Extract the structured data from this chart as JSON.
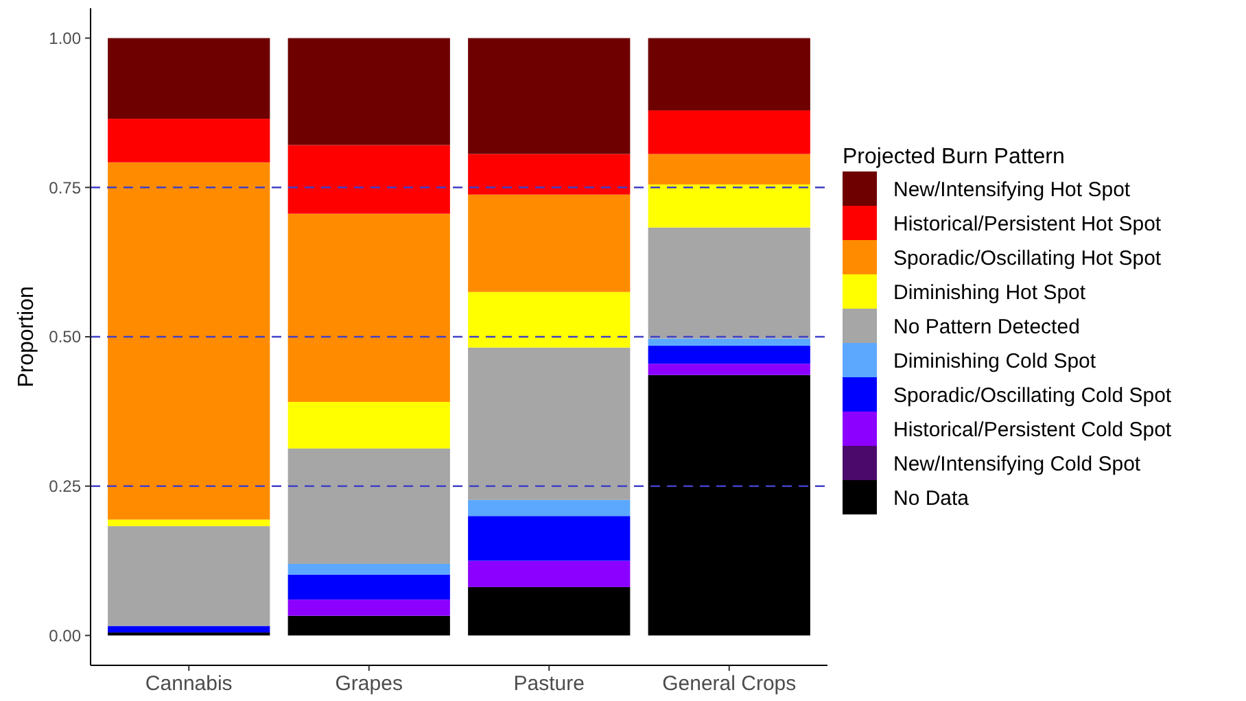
{
  "chart_data": {
    "type": "bar",
    "stacked": true,
    "ylabel": "Proportion",
    "legend_title": "Projected Burn Pattern",
    "legend": "right",
    "grid": false,
    "categories": [
      "Cannabis",
      "Grapes",
      "Pasture",
      "General Crops"
    ],
    "ylim": [
      -0.05,
      1.05
    ],
    "yticks": [
      {
        "value": 0,
        "label": "0.00"
      },
      {
        "value": 0.25,
        "label": "0.25"
      },
      {
        "value": 0.5,
        "label": "0.50"
      },
      {
        "value": 0.75,
        "label": "0.75"
      },
      {
        "value": 1,
        "label": "1.00"
      }
    ],
    "series": [
      {
        "name": "No Data",
        "color": "#000000",
        "values": [
          0.005,
          0.033,
          0.081,
          0.436
        ]
      },
      {
        "name": "New/Intensifying Cold Spot",
        "color": "#4b0a6b",
        "values": [
          0,
          0,
          0,
          0
        ]
      },
      {
        "name": "Historical/Persistent Cold Spot",
        "color": "#8b00ff",
        "values": [
          0,
          0.027,
          0.044,
          0.019
        ]
      },
      {
        "name": "Sporadic/Oscillating Cold Spot",
        "color": "#0000ff",
        "values": [
          0.011,
          0.042,
          0.075,
          0.03
        ]
      },
      {
        "name": "Diminishing Cold Spot",
        "color": "#5ca8ff",
        "values": [
          0,
          0.018,
          0.027,
          0.012
        ]
      },
      {
        "name": "No Pattern Detected",
        "color": "#a6a6a6",
        "values": [
          0.167,
          0.193,
          0.255,
          0.186
        ]
      },
      {
        "name": "Diminishing Hot Spot",
        "color": "#ffff00",
        "values": [
          0.011,
          0.078,
          0.093,
          0.072
        ]
      },
      {
        "name": "Sporadic/Oscillating Hot Spot",
        "color": "#ff8c00",
        "values": [
          0.598,
          0.315,
          0.163,
          0.051
        ]
      },
      {
        "name": "Historical/Persistent Hot Spot",
        "color": "#ff0000",
        "values": [
          0.073,
          0.115,
          0.068,
          0.073
        ]
      },
      {
        "name": "New/Intensifying Hot Spot",
        "color": "#6e0000",
        "values": [
          0.135,
          0.179,
          0.194,
          0.121
        ]
      }
    ],
    "ref_lines": [
      {
        "axis": "y",
        "value": 0.25,
        "color": "#4040c8",
        "line_style": "dashed"
      },
      {
        "axis": "y",
        "value": 0.5,
        "color": "#4040c8",
        "line_style": "dashed"
      },
      {
        "axis": "y",
        "value": 0.75,
        "color": "#4040c8",
        "line_style": "dashed"
      }
    ]
  }
}
